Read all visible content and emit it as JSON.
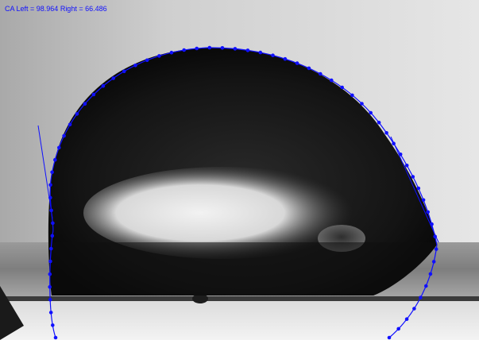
{
  "readout": {
    "prefix": "CA Left = ",
    "left_value": "98.964",
    "sep": " Right = ",
    "right_value": "66.486"
  },
  "overlay": {
    "color": "#1010ff",
    "contact_angle_left_deg": 98.964,
    "contact_angle_right_deg": 66.486
  },
  "colors": {
    "background": "#d0d0d0",
    "droplet": "#111111",
    "substrate": "#8a8a8a",
    "highlight": "#e8e8e8"
  }
}
